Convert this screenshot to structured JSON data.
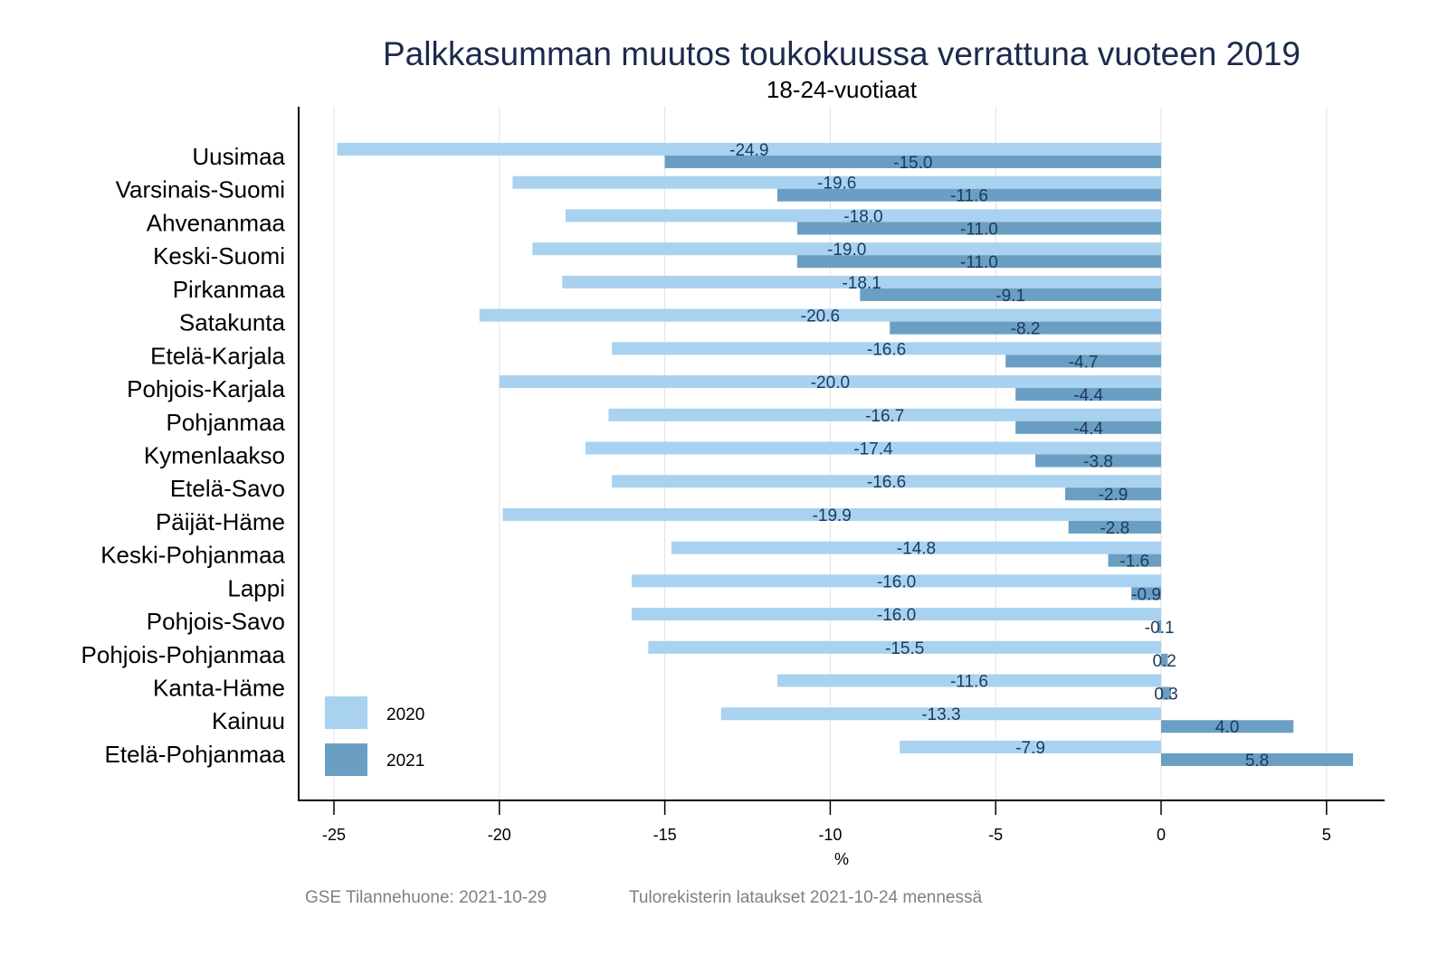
{
  "chart_data": {
    "type": "bar",
    "orientation": "horizontal",
    "title": "Palkkasumman muutos toukokuussa verrattuna vuoteen 2019",
    "subtitle": "18-24-vuotiaat",
    "xlabel": "%",
    "ylabel": "",
    "xlim": [
      -26,
      6.8
    ],
    "xticks": [
      -25,
      -20,
      -15,
      -10,
      -5,
      0,
      5
    ],
    "xtick_labels": [
      "-25",
      "-20",
      "-15",
      "-10",
      "-5",
      "0",
      "5"
    ],
    "grid": true,
    "legend_position": "bottom-left",
    "categories": [
      "Uusimaa",
      "Varsinais-Suomi",
      "Ahvenanmaa",
      "Keski-Suomi",
      "Pirkanmaa",
      "Satakunta",
      "Etelä-Karjala",
      "Pohjois-Karjala",
      "Pohjanmaa",
      "Kymenlaakso",
      "Etelä-Savo",
      "Päijät-Häme",
      "Keski-Pohjanmaa",
      "Lappi",
      "Pohjois-Savo",
      "Pohjois-Pohjanmaa",
      "Kanta-Häme",
      "Kainuu",
      "Etelä-Pohjanmaa"
    ],
    "series": [
      {
        "name": "2020",
        "color": "#a8d2f0",
        "values": [
          -24.9,
          -19.6,
          -18.0,
          -19.0,
          -18.1,
          -20.6,
          -16.6,
          -20.0,
          -16.7,
          -17.4,
          -16.6,
          -19.9,
          -14.8,
          -16.0,
          -16.0,
          -15.5,
          -11.6,
          -13.3,
          -7.9
        ],
        "labels": [
          "-24.9",
          "-19.6",
          "-18.0",
          "-19.0",
          "-18.1",
          "-20.6",
          "-16.6",
          "-20.0",
          "-16.7",
          "-17.4",
          "-16.6",
          "-19.9",
          "-14.8",
          "-16.0",
          "-16.0",
          "-15.5",
          "-11.6",
          "-13.3",
          "-7.9"
        ]
      },
      {
        "name": "2021",
        "color": "#6a9fc3",
        "values": [
          -15.0,
          -11.6,
          -11.0,
          -11.0,
          -9.1,
          -8.2,
          -4.7,
          -4.4,
          -4.4,
          -3.8,
          -2.9,
          -2.8,
          -1.6,
          -0.9,
          -0.1,
          0.2,
          0.3,
          4.0,
          5.8
        ],
        "labels": [
          "-15.0",
          "-11.6",
          "-11.0",
          "-11.0",
          "-9.1",
          "-8.2",
          "-4.7",
          "-4.4",
          "-4.4",
          "-3.8",
          "-2.9",
          "-2.8",
          "-1.6",
          "-0.9",
          "-0.1",
          "0.2",
          "0.3",
          "4.0",
          "5.8"
        ]
      }
    ],
    "footnotes": [
      "GSE Tilannehuone: 2021-10-29",
      "Tulorekisterin lataukset 2021-10-24 mennessä"
    ]
  }
}
